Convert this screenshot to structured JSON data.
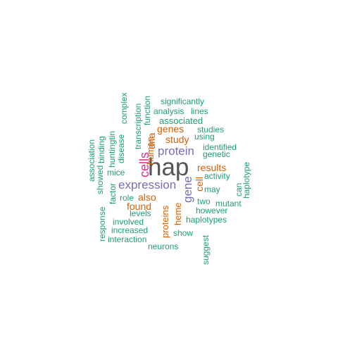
{
  "colors": {
    "green": "#1b9e77",
    "orange": "#d95f02",
    "purple": "#7570b3",
    "magenta": "#e7298a",
    "gray": "#555555"
  },
  "words": {
    "hap": "hap",
    "expression": "expression",
    "protein": "protein",
    "cells": "cells",
    "gene": "gene",
    "genes": "genes",
    "study": "study",
    "dna": "dna",
    "human": "human",
    "also": "also",
    "found": "found",
    "results": "results",
    "cell": "cell",
    "heme": "heme",
    "proteins": "proteins",
    "significantly": "significantly",
    "analysis": "analysis",
    "lines": "lines",
    "associated": "associated",
    "studies": "studies",
    "using": "using",
    "identified": "identified",
    "genetic": "genetic",
    "activity": "activity",
    "may": "may",
    "two": "two",
    "mutant": "mutant",
    "however": "however",
    "haplotypes": "haplotypes",
    "show": "show",
    "neurons": "neurons",
    "interaction": "interaction",
    "increased": "increased",
    "involved": "involved",
    "levels": "levels",
    "role": "role",
    "mice": "mice",
    "suggest": "suggest",
    "can": "can",
    "haplotype": "haplotype",
    "complex": "complex",
    "transcription": "transcription",
    "function": "function",
    "huntingtin": "huntingtin",
    "disease": "disease",
    "binding": "binding",
    "association": "association",
    "showed": "showed",
    "factor": "factor",
    "response": "response"
  }
}
